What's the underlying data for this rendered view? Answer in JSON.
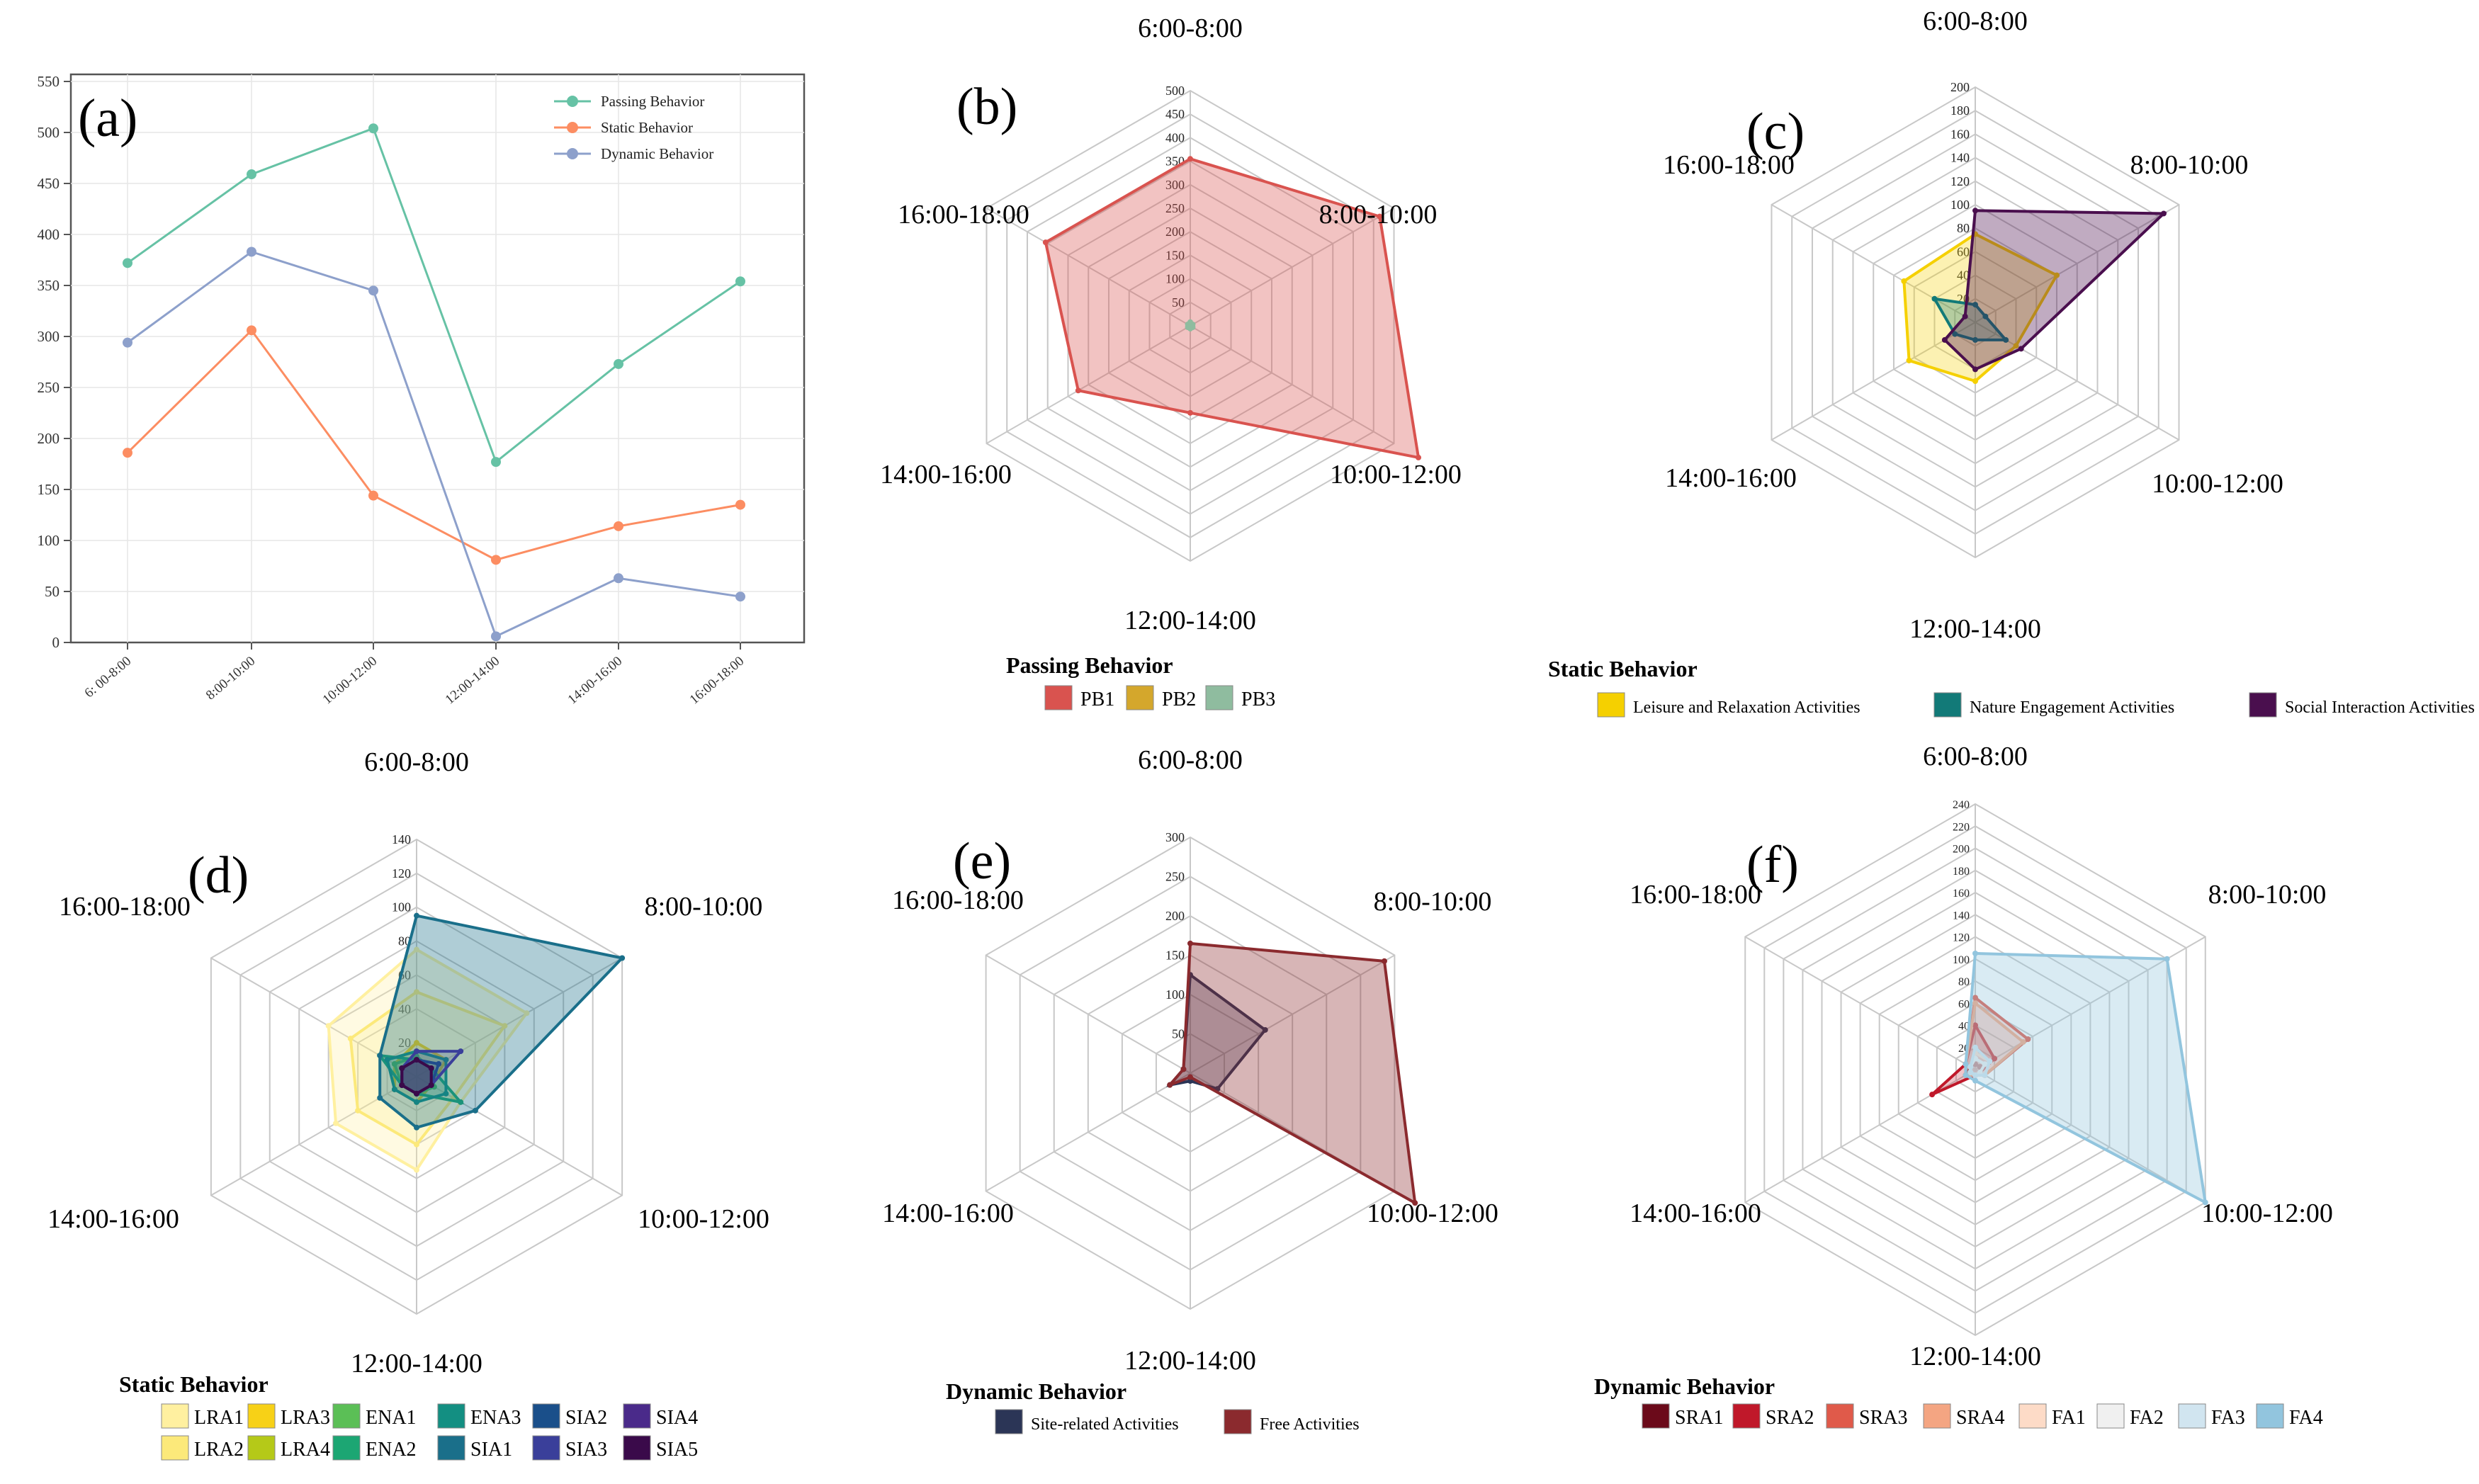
{
  "chart_data": [
    {
      "id": "a",
      "type": "line",
      "panel_label": "(a)",
      "categories": [
        "6: 00-8:00",
        "8:00-10:00",
        "10:00-12:00",
        "12:00-14:00",
        "14:00-16:00",
        "16:00-18:00"
      ],
      "ylim": [
        0,
        550
      ],
      "yticks": [
        "0",
        "50",
        "100",
        "150",
        "200",
        "250",
        "300",
        "350",
        "400",
        "450",
        "500",
        "550"
      ],
      "grid": true,
      "legend_position": "top-right",
      "series": [
        {
          "name": "Passing Behavior",
          "color": "#66c2a5",
          "values": [
            372,
            459,
            504,
            177,
            273,
            354
          ]
        },
        {
          "name": "Static Behavior",
          "color": "#fc8d62",
          "values": [
            186,
            306,
            144,
            81,
            114,
            135
          ]
        },
        {
          "name": "Dynamic Behavior",
          "color": "#8da0cb",
          "values": [
            294,
            383,
            345,
            6,
            63,
            45
          ]
        }
      ]
    },
    {
      "id": "b",
      "type": "radar",
      "panel_label": "(b)",
      "axes": [
        "6:00-8:00",
        "8:00-10:00",
        "10:00-12:00",
        "12:00-14:00",
        "14:00-16:00",
        "16:00-18:00"
      ],
      "rmax": 500,
      "ticks": [
        "50",
        "100",
        "150",
        "200",
        "250",
        "300",
        "350",
        "400",
        "450",
        "500"
      ],
      "legend_title": "Passing Behavior",
      "series": [
        {
          "name": "PB1",
          "color": "#d9534f",
          "alpha": 0.35,
          "values": [
            355,
            465,
            560,
            185,
            275,
            355
          ]
        },
        {
          "name": "PB2",
          "color": "#d4a72c",
          "alpha": 0.35,
          "values": [
            5,
            5,
            5,
            5,
            5,
            5
          ]
        },
        {
          "name": "PB3",
          "color": "#8fbc9f",
          "alpha": 0.35,
          "values": [
            8,
            6,
            6,
            6,
            6,
            6
          ]
        }
      ]
    },
    {
      "id": "c",
      "type": "radar",
      "panel_label": "(c)",
      "axes": [
        "6:00-8:00",
        "8:00-10:00",
        "10:00-12:00",
        "12:00-14:00",
        "14:00-16:00",
        "16:00-18:00"
      ],
      "rmax": 200,
      "ticks": [
        "20",
        "40",
        "60",
        "80",
        "100",
        "120",
        "140",
        "160",
        "180",
        "200"
      ],
      "legend_title": "Static Behavior",
      "series": [
        {
          "name": "Leisure and Relaxation Activities",
          "color": "#f5d000",
          "alpha": 0.3,
          "values": [
            75,
            80,
            40,
            50,
            65,
            70
          ]
        },
        {
          "name": "Nature Engagement Activities",
          "color": "#127a78",
          "alpha": 0.3,
          "values": [
            15,
            10,
            30,
            15,
            20,
            40
          ]
        },
        {
          "name": "Social Interaction Activities",
          "color": "#4a0f4e",
          "alpha": 0.35,
          "values": [
            95,
            185,
            45,
            40,
            30,
            10
          ]
        }
      ]
    },
    {
      "id": "d",
      "type": "radar",
      "panel_label": "(d)",
      "axes": [
        "6:00-8:00",
        "8:00-10:00",
        "10:00-12:00",
        "12:00-14:00",
        "14:00-16:00",
        "16:00-18:00"
      ],
      "rmax": 140,
      "ticks": [
        "20",
        "40",
        "60",
        "80",
        "100",
        "120",
        "140"
      ],
      "legend_title": "Static Behavior",
      "series": [
        {
          "name": "LRA1",
          "color": "#fff0a0",
          "alpha": 0.3,
          "values": [
            75,
            75,
            30,
            55,
            55,
            60
          ]
        },
        {
          "name": "LRA2",
          "color": "#fce97a",
          "alpha": 0.2,
          "values": [
            50,
            60,
            25,
            40,
            40,
            45
          ]
        },
        {
          "name": "LRA3",
          "color": "#f7d117",
          "alpha": 0.2,
          "values": [
            20,
            20,
            10,
            15,
            15,
            15
          ]
        },
        {
          "name": "LRA4",
          "color": "#b5c918",
          "alpha": 0.2,
          "values": [
            10,
            10,
            10,
            10,
            10,
            10
          ]
        },
        {
          "name": "ENA1",
          "color": "#5bbf56",
          "alpha": 0.2,
          "values": [
            12,
            10,
            12,
            10,
            10,
            15
          ]
        },
        {
          "name": "ENA2",
          "color": "#1ca673",
          "alpha": 0.2,
          "values": [
            10,
            10,
            30,
            10,
            10,
            25
          ]
        },
        {
          "name": "ENA3",
          "color": "#138f82",
          "alpha": 0.2,
          "values": [
            15,
            20,
            20,
            15,
            15,
            20
          ]
        },
        {
          "name": "SIA1",
          "color": "#1a6f8a",
          "alpha": 0.35,
          "values": [
            95,
            140,
            40,
            30,
            25,
            25
          ]
        },
        {
          "name": "SIA2",
          "color": "#1a4f8a",
          "alpha": 0.2,
          "values": [
            10,
            15,
            10,
            10,
            10,
            10
          ]
        },
        {
          "name": "SIA3",
          "color": "#3a3f9a",
          "alpha": 0.2,
          "values": [
            15,
            30,
            10,
            10,
            10,
            10
          ]
        },
        {
          "name": "SIA4",
          "color": "#4a2a8a",
          "alpha": 0.2,
          "values": [
            10,
            10,
            10,
            10,
            10,
            10
          ]
        },
        {
          "name": "SIA5",
          "color": "#3a0a4a",
          "alpha": 0.2,
          "values": [
            10,
            10,
            10,
            10,
            10,
            10
          ]
        }
      ]
    },
    {
      "id": "e",
      "type": "radar",
      "panel_label": "(e)",
      "axes": [
        "6:00-8:00",
        "8:00-10:00",
        "10:00-12:00",
        "12:00-14:00",
        "14:00-16:00",
        "16:00-18:00"
      ],
      "rmax": 300,
      "ticks": [
        "50",
        "100",
        "150",
        "200",
        "250",
        "300"
      ],
      "legend_title": "Dynamic Behavior",
      "series": [
        {
          "name": "Site-related Activities",
          "color": "#2b3556",
          "alpha": 0.3,
          "values": [
            125,
            110,
            40,
            10,
            30,
            10
          ]
        },
        {
          "name": "Free Activities",
          "color": "#8b2a2e",
          "alpha": 0.35,
          "values": [
            165,
            285,
            330,
            5,
            30,
            10
          ]
        }
      ]
    },
    {
      "id": "f",
      "type": "radar",
      "panel_label": "(f)",
      "axes": [
        "6:00-8:00",
        "8:00-10:00",
        "10:00-12:00",
        "12:00-14:00",
        "14:00-16:00",
        "16:00-18:00"
      ],
      "rmax": 240,
      "ticks": [
        "20",
        "40",
        "60",
        "80",
        "100",
        "120",
        "140",
        "160",
        "180",
        "200",
        "220",
        "240"
      ],
      "legend_title": "Dynamic Behavior",
      "series": [
        {
          "name": "SRA1",
          "color": "#6b0a1a",
          "alpha": 0.2,
          "values": [
            5,
            5,
            5,
            5,
            10,
            5
          ]
        },
        {
          "name": "SRA2",
          "color": "#c0182a",
          "alpha": 0.25,
          "values": [
            40,
            20,
            5,
            5,
            45,
            10
          ]
        },
        {
          "name": "SRA3",
          "color": "#e05a4a",
          "alpha": 0.2,
          "values": [
            65,
            55,
            10,
            5,
            10,
            10
          ]
        },
        {
          "name": "SRA4",
          "color": "#f4a582",
          "alpha": 0.2,
          "values": [
            60,
            50,
            10,
            5,
            10,
            10
          ]
        },
        {
          "name": "FA1",
          "color": "#fddbc7",
          "alpha": 0.2,
          "values": [
            15,
            15,
            10,
            5,
            5,
            5
          ]
        },
        {
          "name": "FA2",
          "color": "#f0f0f0",
          "alpha": 0.2,
          "values": [
            10,
            10,
            5,
            5,
            5,
            5
          ]
        },
        {
          "name": "FA3",
          "color": "#d1e5f0",
          "alpha": 0.2,
          "values": [
            20,
            15,
            10,
            5,
            5,
            5
          ]
        },
        {
          "name": "FA4",
          "color": "#92c5de",
          "alpha": 0.35,
          "values": [
            105,
            200,
            240,
            10,
            10,
            10
          ]
        }
      ]
    }
  ]
}
